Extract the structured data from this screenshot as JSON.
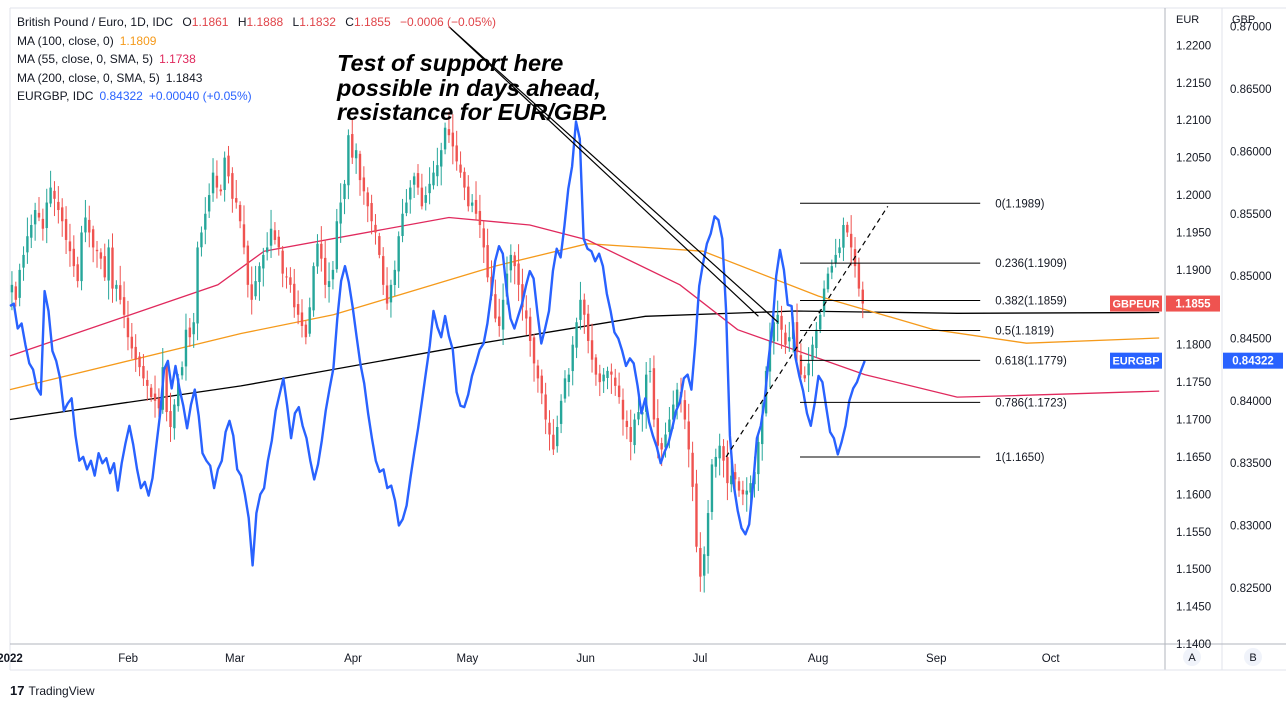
{
  "legend": {
    "main_label": "British Pound / Euro, 1D, IDC",
    "o_label": "O",
    "o": "1.1861",
    "h_label": "H",
    "h": "1.1888",
    "l_label": "L",
    "l": "1.1832",
    "c_label": "C",
    "c": "1.1855",
    "change": "−0.0006 (−0.05%)",
    "ma100_label": "MA (100, close, 0)",
    "ma100_value": "1.1809",
    "ma55_label": "MA (55, close, 0, SMA, 5)",
    "ma55_value": "1.1738",
    "ma200_label": "MA (200, close, 0, SMA, 5)",
    "ma200_value": "1.1843",
    "eurgbp_label": "EURGBP, IDC",
    "eurgbp_value": "0.84322",
    "eurgbp_change": "+0.00040 (+0.05%)"
  },
  "annotation": {
    "line1": "Test of support here",
    "line2": "possible in days ahead,",
    "line3": "resistance for EUR/GBP."
  },
  "axis_heads": {
    "left": "EUR",
    "right": "GBP"
  },
  "scale_buttons": {
    "a": "A",
    "b": "B"
  },
  "brand": {
    "logo": "17",
    "name": "TradingView"
  },
  "colors": {
    "up": "#26a69a",
    "down": "#ef5350",
    "ma100": "#f59a1b",
    "ma55": "#e0295d",
    "ma200": "#000000",
    "eurgbp": "#2962ff",
    "gbpeur_badge": "#ef5350",
    "eurgbp_badge": "#2962ff"
  },
  "chart_data": {
    "type": "candlestick",
    "x_axis": {
      "start": "2022-01-01",
      "end": "2022-10-31",
      "ticks": [
        {
          "date": "2022-01-01",
          "label": "2022",
          "bold": true
        },
        {
          "date": "2022-02-01",
          "label": "Feb"
        },
        {
          "date": "2022-03-01",
          "label": "Mar"
        },
        {
          "date": "2022-04-01",
          "label": "Apr"
        },
        {
          "date": "2022-05-01",
          "label": "May"
        },
        {
          "date": "2022-06-01",
          "label": "Jun"
        },
        {
          "date": "2022-07-01",
          "label": "Jul"
        },
        {
          "date": "2022-08-01",
          "label": "Aug"
        },
        {
          "date": "2022-09-01",
          "label": "Sep"
        },
        {
          "date": "2022-10-01",
          "label": "Oct"
        }
      ]
    },
    "eur_axis": {
      "label": "EUR",
      "range": [
        1.14,
        1.225
      ],
      "ticks": [
        "1.1400",
        "1.1450",
        "1.1500",
        "1.1550",
        "1.1600",
        "1.1650",
        "1.1700",
        "1.1750",
        "1.1800",
        "1.1850",
        "1.1900",
        "1.1950",
        "1.2000",
        "1.2050",
        "1.2100",
        "1.2150",
        "1.2200"
      ]
    },
    "gbp_axis": {
      "label": "GBP",
      "range": [
        0.8205,
        0.8715
      ],
      "ticks": [
        "0.82500",
        "0.83000",
        "0.83500",
        "0.84000",
        "0.84500",
        "0.85000",
        "0.85500",
        "0.86000",
        "0.86500",
        "0.87000"
      ]
    },
    "gbpeur_closes": [
      1.188,
      1.186,
      1.19,
      1.192,
      1.1945,
      1.196,
      1.198,
      1.197,
      1.1955,
      1.199,
      1.201,
      1.1995,
      1.198,
      1.1965,
      1.194,
      1.1925,
      1.1905,
      1.1885,
      1.195,
      1.197,
      1.195,
      1.193,
      1.1925,
      1.1915,
      1.189,
      1.193,
      1.1875,
      1.188,
      1.186,
      1.184,
      1.181,
      1.1795,
      1.178,
      1.177,
      1.1755,
      1.1745,
      1.173,
      1.1725,
      1.1715,
      1.177,
      1.171,
      1.169,
      1.172,
      1.1755,
      1.177,
      1.182,
      1.181,
      1.183,
      1.193,
      1.195,
      1.1975,
      1.2,
      1.203,
      1.201,
      1.2005,
      1.205,
      1.2025,
      1.1995,
      1.199,
      1.1965,
      1.193,
      1.188,
      1.186,
      1.1885,
      1.1905,
      1.192,
      1.193,
      1.1955,
      1.194,
      1.193,
      1.1895,
      1.189,
      1.188,
      1.185,
      1.184,
      1.1825,
      1.181,
      1.185,
      1.1905,
      1.1935,
      1.1915,
      1.188,
      1.1885,
      1.19,
      1.1965,
      1.199,
      1.2015,
      1.208,
      1.205,
      1.206,
      1.202,
      1.2005,
      1.1985,
      1.1965,
      1.195,
      1.192,
      1.188,
      1.1855,
      1.188,
      1.19,
      1.1945,
      1.1975,
      1.199,
      1.201,
      1.2025,
      1.201,
      1.1985,
      1.2,
      1.2015,
      1.203,
      1.204,
      1.206,
      1.209,
      1.208,
      1.2065,
      1.2045,
      1.203,
      1.201,
      1.1985,
      1.199,
      1.1975,
      1.196,
      1.193,
      1.189,
      1.1865,
      1.1835,
      1.1825,
      1.186,
      1.1895,
      1.192,
      1.1905,
      1.188,
      1.185,
      1.1835,
      1.1805,
      1.1775,
      1.1755,
      1.1735,
      1.17,
      1.168,
      1.166,
      1.169,
      1.1725,
      1.1755,
      1.176,
      1.18,
      1.183,
      1.186,
      1.184,
      1.1805,
      1.178,
      1.176,
      1.175,
      1.176,
      1.1765,
      1.176,
      1.1745,
      1.173,
      1.17,
      1.169,
      1.167,
      1.17,
      1.171,
      1.171,
      1.176,
      1.1765,
      1.17,
      1.1665,
      1.166,
      1.168,
      1.17,
      1.172,
      1.174,
      1.173,
      1.17,
      1.166,
      1.161,
      1.153,
      1.149,
      1.152,
      1.1575,
      1.164,
      1.165,
      1.1665,
      1.1645,
      1.1615,
      1.1625,
      1.162,
      1.1605,
      1.16,
      1.1605,
      1.1615,
      1.163,
      1.167,
      1.1705,
      1.1765,
      1.1805,
      1.183,
      1.184,
      1.182,
      1.18,
      1.181,
      1.183,
      1.179,
      1.176,
      1.1755,
      1.1775,
      1.18,
      1.182,
      1.184,
      1.1875,
      1.1895,
      1.1905,
      1.192,
      1.193,
      1.196,
      1.195,
      1.193,
      1.1905,
      1.1875,
      1.1855
    ],
    "eurgbp_closes": [
      0.8476,
      0.8478,
      0.8458,
      0.8462,
      0.8445,
      0.843,
      0.8425,
      0.841,
      0.8405,
      0.8488,
      0.8472,
      0.844,
      0.8432,
      0.8418,
      0.8392,
      0.8398,
      0.8402,
      0.8372,
      0.8352,
      0.8355,
      0.8345,
      0.8352,
      0.834,
      0.8358,
      0.835,
      0.8354,
      0.8342,
      0.835,
      0.8328,
      0.835,
      0.8366,
      0.838,
      0.8365,
      0.8345,
      0.833,
      0.8335,
      0.8324,
      0.8338,
      0.8364,
      0.839,
      0.8425,
      0.8432,
      0.841,
      0.8428,
      0.841,
      0.8396,
      0.8378,
      0.8397,
      0.8409,
      0.8388,
      0.8358,
      0.8352,
      0.8348,
      0.833,
      0.8345,
      0.8352,
      0.8375,
      0.8384,
      0.8372,
      0.8345,
      0.834,
      0.8325,
      0.8306,
      0.8268,
      0.831,
      0.8325,
      0.833,
      0.8352,
      0.8368,
      0.8392,
      0.8405,
      0.8418,
      0.8396,
      0.837,
      0.839,
      0.8395,
      0.838,
      0.837,
      0.8352,
      0.8337,
      0.8349,
      0.8368,
      0.8392,
      0.841,
      0.8426,
      0.8466,
      0.8496,
      0.8508,
      0.8495,
      0.8475,
      0.8452,
      0.843,
      0.8414,
      0.839,
      0.837,
      0.8352,
      0.8343,
      0.8345,
      0.833,
      0.8332,
      0.832,
      0.83,
      0.8305,
      0.8316,
      0.8338,
      0.8359,
      0.8378,
      0.84,
      0.8422,
      0.8444,
      0.8472,
      0.8459,
      0.8451,
      0.8468,
      0.8452,
      0.8441,
      0.8407,
      0.8396,
      0.8395,
      0.8405,
      0.842,
      0.843,
      0.8441,
      0.8446,
      0.8462,
      0.8486,
      0.8512,
      0.8524,
      0.8518,
      0.8488,
      0.8466,
      0.8458,
      0.8468,
      0.8478,
      0.8492,
      0.8504,
      0.8498,
      0.847,
      0.8446,
      0.8458,
      0.8472,
      0.8504,
      0.8522,
      0.8515,
      0.854,
      0.857,
      0.8588,
      0.8624,
      0.861,
      0.853,
      0.8522,
      0.852,
      0.8512,
      0.8518,
      0.8508,
      0.8486,
      0.8472,
      0.8455,
      0.845,
      0.844,
      0.8428,
      0.8434,
      0.843,
      0.8412,
      0.839,
      0.8402,
      0.8383,
      0.8372,
      0.8363,
      0.835,
      0.8359,
      0.8366,
      0.8378,
      0.8392,
      0.8399,
      0.8418,
      0.8421,
      0.8409,
      0.8446,
      0.8492,
      0.851,
      0.8526,
      0.8534,
      0.8548,
      0.8545,
      0.853,
      0.8472,
      0.8372,
      0.8332,
      0.8312,
      0.8298,
      0.8293,
      0.8301,
      0.8333,
      0.837,
      0.838,
      0.84,
      0.8433,
      0.8459,
      0.85,
      0.8521,
      0.8505,
      0.8477,
      0.8476,
      0.8435,
      0.842,
      0.8408,
      0.839,
      0.838,
      0.8398,
      0.842,
      0.8415,
      0.8395,
      0.8375,
      0.837,
      0.8357,
      0.8367,
      0.838,
      0.84,
      0.841,
      0.8415,
      0.8424,
      0.8432
    ],
    "ma100": [
      [
        0,
        1.174
      ],
      [
        0.2,
        1.1815
      ],
      [
        0.28,
        1.184
      ],
      [
        0.42,
        1.1905
      ],
      [
        0.5,
        1.1935
      ],
      [
        0.6,
        1.1925
      ],
      [
        0.7,
        1.1865
      ],
      [
        0.8,
        1.182
      ],
      [
        0.88,
        1.1802
      ],
      [
        0.995,
        1.1809
      ]
    ],
    "ma55": [
      [
        0,
        1.1785
      ],
      [
        0.18,
        1.188
      ],
      [
        0.22,
        1.1925
      ],
      [
        0.38,
        1.197
      ],
      [
        0.45,
        1.196
      ],
      [
        0.5,
        1.194
      ],
      [
        0.58,
        1.188
      ],
      [
        0.63,
        1.182
      ],
      [
        0.74,
        1.176
      ],
      [
        0.82,
        1.173
      ],
      [
        0.87,
        1.1732
      ],
      [
        0.995,
        1.1738
      ]
    ],
    "ma200": [
      [
        0,
        1.17
      ],
      [
        0.2,
        1.1745
      ],
      [
        0.4,
        1.18
      ],
      [
        0.55,
        1.1838
      ],
      [
        0.68,
        1.1845
      ],
      [
        0.82,
        1.1842
      ],
      [
        0.995,
        1.1843
      ]
    ],
    "fibonacci": {
      "levels": [
        {
          "label": "0(1.1989)",
          "price": 1.1989
        },
        {
          "label": "0.236(1.1909)",
          "price": 1.1909
        },
        {
          "label": "0.382(1.1859)",
          "price": 1.1859
        },
        {
          "label": "0.5(1.1819)",
          "price": 1.1819
        },
        {
          "label": "0.618(1.1779)",
          "price": 1.1779
        },
        {
          "label": "0.786(1.1723)",
          "price": 1.1723
        },
        {
          "label": "1(1.1650)",
          "price": 1.165
        }
      ]
    },
    "trendlines": [
      {
        "from": [
          0.38,
          1.2225
        ],
        "to": [
          0.665,
          1.183
        ]
      },
      {
        "from": [
          0.38,
          1.2225
        ],
        "to": [
          0.648,
          1.1838
        ]
      }
    ],
    "dashed_trendline": {
      "from": [
        0.62,
        1.165
      ],
      "to": [
        0.76,
        1.1985
      ]
    },
    "price_badges": [
      {
        "label": "GBPEUR",
        "value": "1.1855",
        "axis": "EUR",
        "price": 1.1855
      },
      {
        "label": "EURGBP",
        "value": "0.84322",
        "axis": "GBP",
        "price": 0.84322
      }
    ]
  }
}
